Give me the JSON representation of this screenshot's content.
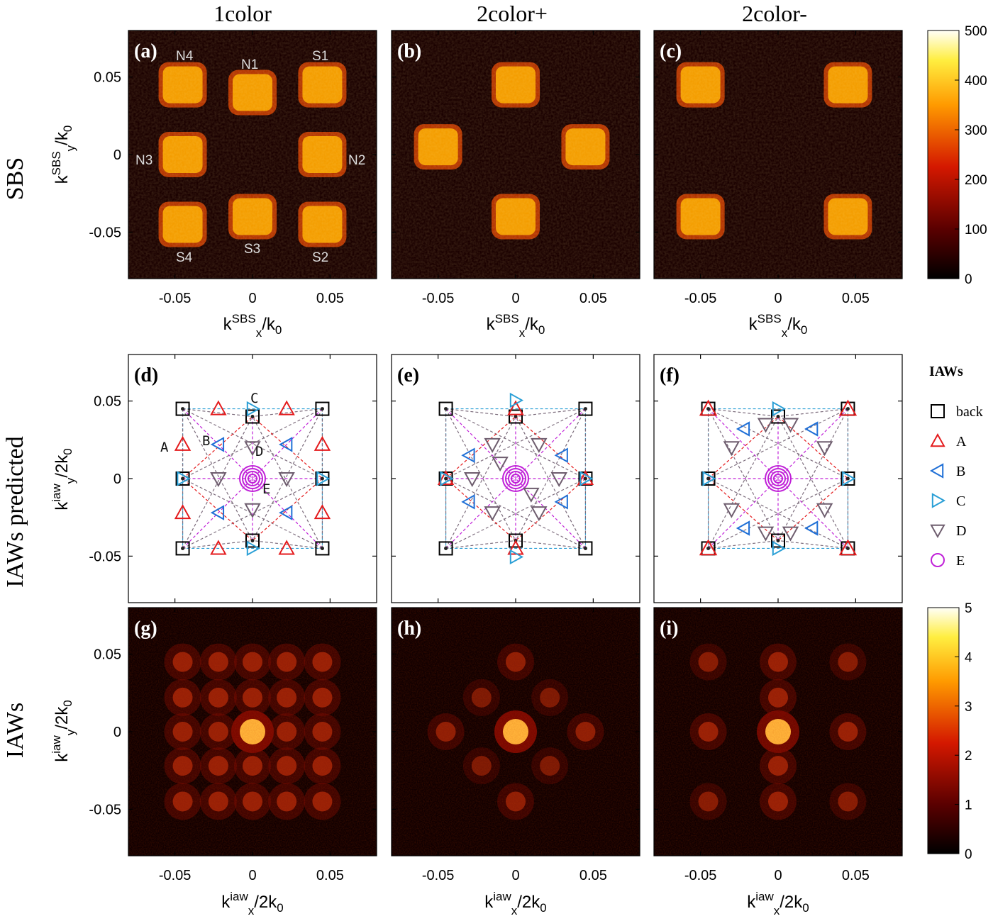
{
  "figure": {
    "column_titles": [
      "1color",
      "2color+",
      "2color-"
    ],
    "row_titles": [
      "SBS",
      "IAWs predicted",
      "IAWs"
    ],
    "panel_letters": [
      "(a)",
      "(b)",
      "(c)",
      "(d)",
      "(e)",
      "(f)",
      "(g)",
      "(h)",
      "(i)"
    ],
    "tick_labels": [
      "-0.05",
      "0",
      "0.05"
    ],
    "axis_labels": {
      "sbs_y": {
        "main": "k",
        "sup": "SBS",
        "sub": "y",
        "tail": "/k",
        "tail_sub": "0"
      },
      "sbs_x": {
        "main": "k",
        "sup": "SBS",
        "sub": "x",
        "tail": "/k",
        "tail_sub": "0"
      },
      "iaw_y": {
        "main": "k",
        "sup": "iaw",
        "sub": "y",
        "tail": "/2k",
        "tail_sub": "0"
      },
      "iaw_x": {
        "main": "k",
        "sup": "iaw",
        "sub": "x",
        "tail": "/2k",
        "tail_sub": "0"
      }
    },
    "spot_labels": [
      "N4",
      "N1",
      "S1",
      "N3",
      "N2",
      "S4",
      "S3",
      "S2"
    ],
    "mode_labels": [
      "A",
      "B",
      "C",
      "D",
      "E"
    ],
    "legend": {
      "title": "IAWs",
      "items": [
        {
          "label": "back",
          "marker": "square",
          "color": "#000000"
        },
        {
          "label": "A",
          "marker": "triangle-up",
          "color": "#e41a1c"
        },
        {
          "label": "B",
          "marker": "triangle-left",
          "color": "#1f6fd6"
        },
        {
          "label": "C",
          "marker": "triangle-right",
          "color": "#2a9fd6"
        },
        {
          "label": "D",
          "marker": "triangle-down",
          "color": "#6e5d6e"
        },
        {
          "label": "E",
          "marker": "circle",
          "color": "#c021d8"
        }
      ]
    },
    "colorbars": [
      {
        "ticks": [
          "500",
          "400",
          "300",
          "200",
          "100",
          "0"
        ]
      },
      {
        "ticks": [
          "5",
          "4",
          "3",
          "2",
          "1",
          "0"
        ]
      }
    ]
  },
  "chart_data": [
    {
      "panel": "(a)",
      "type": "heatmap",
      "xlabel": "k_x^SBS/k_0",
      "ylabel": "k_y^SBS/k_0",
      "xlim": [
        -0.08,
        0.08
      ],
      "ylim": [
        -0.08,
        0.08
      ],
      "clim": [
        0,
        500
      ],
      "spots": [
        [
          -0.045,
          0.045
        ],
        [
          0,
          0.04
        ],
        [
          0.045,
          0.045
        ],
        [
          -0.045,
          0
        ],
        [
          0.045,
          0
        ],
        [
          -0.045,
          -0.045
        ],
        [
          0,
          -0.04
        ],
        [
          0.045,
          -0.045
        ]
      ]
    },
    {
      "panel": "(b)",
      "type": "heatmap",
      "xlim": [
        -0.08,
        0.08
      ],
      "ylim": [
        -0.08,
        0.08
      ],
      "clim": [
        0,
        500
      ],
      "spots": [
        [
          0,
          0.045
        ],
        [
          -0.05,
          0.005
        ],
        [
          0.045,
          0.005
        ],
        [
          0,
          -0.04
        ]
      ]
    },
    {
      "panel": "(c)",
      "type": "heatmap",
      "xlim": [
        -0.08,
        0.08
      ],
      "ylim": [
        -0.08,
        0.08
      ],
      "clim": [
        0,
        500
      ],
      "spots": [
        [
          -0.05,
          0.045
        ],
        [
          0.045,
          0.045
        ],
        [
          -0.05,
          -0.04
        ],
        [
          0.045,
          -0.04
        ]
      ]
    },
    {
      "panel": "(g)",
      "type": "heatmap",
      "xlabel": "k_x^iaw/2k_0",
      "ylabel": "k_y^iaw/2k_0",
      "xlim": [
        -0.08,
        0.08
      ],
      "ylim": [
        -0.08,
        0.08
      ],
      "clim": [
        0,
        5
      ]
    },
    {
      "panel": "(h)",
      "type": "heatmap",
      "xlim": [
        -0.08,
        0.08
      ],
      "ylim": [
        -0.08,
        0.08
      ],
      "clim": [
        0,
        5
      ]
    },
    {
      "panel": "(i)",
      "type": "heatmap",
      "xlim": [
        -0.08,
        0.08
      ],
      "ylim": [
        -0.08,
        0.08
      ],
      "clim": [
        0,
        5
      ]
    }
  ]
}
